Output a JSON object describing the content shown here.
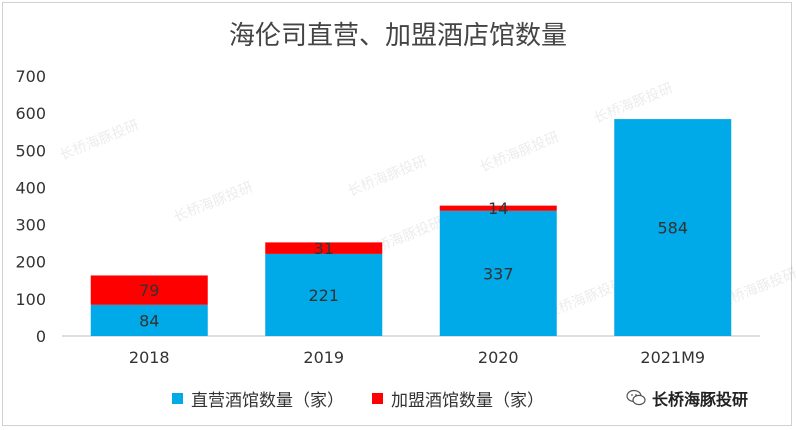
{
  "chart_data": {
    "type": "bar",
    "stacked": true,
    "title": "海伦司直营、加盟酒店馆数量",
    "categories": [
      "2018",
      "2019",
      "2020",
      "2021M9"
    ],
    "series": [
      {
        "name": "直营酒馆数量（家）",
        "values": [
          84,
          221,
          337,
          584
        ],
        "color": "#00a9e8"
      },
      {
        "name": "加盟酒馆数量（家）",
        "values": [
          79,
          31,
          14,
          null
        ],
        "color": "#ff0000"
      }
    ],
    "y_ticks": [
      0,
      100,
      200,
      300,
      400,
      500,
      600,
      700
    ],
    "ylim": [
      0,
      700
    ],
    "xlabel": "",
    "ylabel": "",
    "grid": false,
    "legend_position": "bottom"
  },
  "watermark": "长桥海豚投研",
  "brand": {
    "icon": "wechat-icon",
    "text": "长桥海豚投研"
  }
}
